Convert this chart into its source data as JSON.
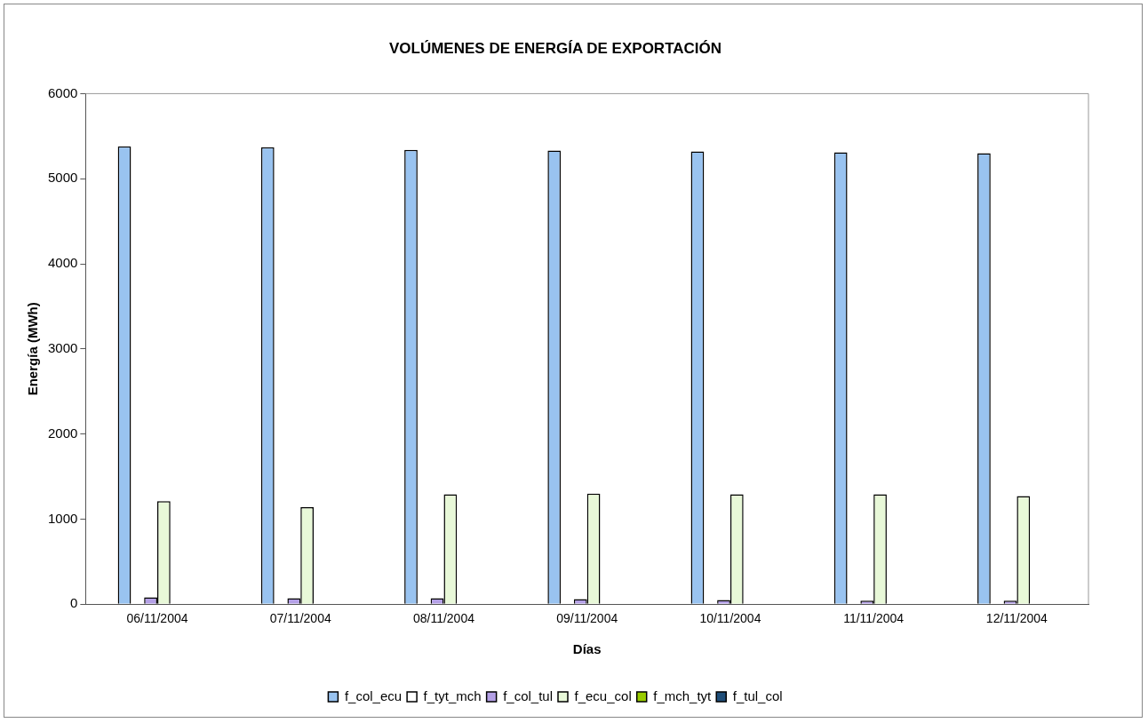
{
  "chart_data": {
    "type": "bar",
    "title": "VOLÚMENES DE ENERGÍA DE EXPORTACIÓN",
    "xlabel": "Días",
    "ylabel": "Energía (MWh)",
    "categories": [
      "06/11/2004",
      "07/11/2004",
      "08/11/2004",
      "09/11/2004",
      "10/11/2004",
      "11/11/2004",
      "12/11/2004"
    ],
    "series": [
      {
        "name": "f_col_ecu",
        "color": "#99c3f0",
        "values": [
          5380,
          5370,
          5340,
          5330,
          5320,
          5310,
          5300
        ]
      },
      {
        "name": "f_tyt_mch",
        "color": "#ffffff",
        "values": [
          0,
          0,
          0,
          0,
          0,
          0,
          0
        ]
      },
      {
        "name": "f_col_tul",
        "color": "#b4a0e6",
        "values": [
          80,
          70,
          70,
          60,
          50,
          40,
          40
        ]
      },
      {
        "name": "f_ecu_col",
        "color": "#e8f8d8",
        "values": [
          1210,
          1140,
          1290,
          1300,
          1290,
          1290,
          1270
        ]
      },
      {
        "name": "f_mch_tyt",
        "color": "#99cc00",
        "values": [
          0,
          0,
          0,
          0,
          0,
          0,
          0
        ]
      },
      {
        "name": "f_tul_col",
        "color": "#1f4e79",
        "values": [
          0,
          0,
          0,
          0,
          0,
          0,
          0
        ]
      }
    ],
    "ylim": [
      0,
      6000
    ],
    "yticks": [
      0,
      1000,
      2000,
      3000,
      4000,
      5000,
      6000
    ],
    "grid": false,
    "legend": "bottom"
  }
}
